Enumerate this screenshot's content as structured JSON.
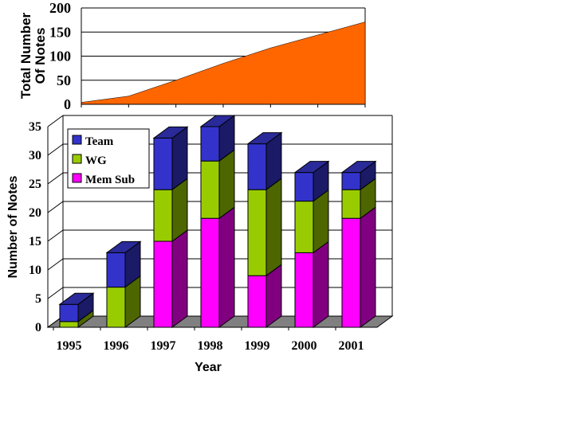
{
  "chart_data": [
    {
      "type": "area",
      "x": [
        "1995",
        "1996",
        "1997",
        "1998",
        "1999",
        "2000",
        "2001"
      ],
      "values": [
        4,
        17,
        50,
        85,
        117,
        144,
        171
      ],
      "ylabel_lines": [
        "Total Number",
        "Of Notes"
      ],
      "ylim": [
        0,
        200
      ],
      "yticks": [
        "0",
        "50",
        "100",
        "150",
        "200"
      ],
      "grid": true,
      "color": "#FF6600"
    },
    {
      "type": "bar",
      "stacked": true,
      "three_d": true,
      "categories": [
        "1995",
        "1996",
        "1997",
        "1998",
        "1999",
        "2000",
        "2001"
      ],
      "series": [
        {
          "name": "Mem Sub",
          "values": [
            0,
            0,
            15,
            19,
            9,
            13,
            19
          ],
          "color": "#FF00FF",
          "side_color": "#800080"
        },
        {
          "name": "WG",
          "values": [
            1,
            7,
            9,
            10,
            15,
            9,
            5
          ],
          "color": "#99CC00",
          "side_color": "#4D6600"
        },
        {
          "name": "Team",
          "values": [
            3,
            6,
            9,
            6,
            8,
            5,
            3
          ],
          "color": "#3333CC",
          "side_color": "#1A1A66"
        }
      ],
      "legend_order": [
        "Team",
        "WG",
        "Mem Sub"
      ],
      "legend_position": "top-left",
      "xlabel": "Year",
      "ylabel": "Number of Notes",
      "ylim": [
        0,
        35
      ],
      "yticks": [
        "0",
        "5",
        "10",
        "15",
        "20",
        "25",
        "30",
        "35"
      ],
      "grid": true,
      "floor_color": "#808080"
    }
  ]
}
